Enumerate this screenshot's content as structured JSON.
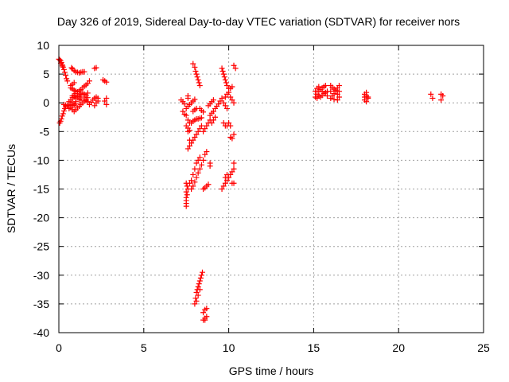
{
  "chart_data": {
    "type": "scatter",
    "title": "Day 326 of 2019, Sidereal Day-to-day VTEC variation (SDTVAR) for receiver nors",
    "xlabel": "GPS time / hours",
    "ylabel": "SDTVAR / TECUs",
    "xlim": [
      0,
      25
    ],
    "ylim": [
      -40,
      10
    ],
    "xticks": [
      0,
      5,
      10,
      15,
      20,
      25
    ],
    "xtick_labels": [
      "0",
      "5",
      "10",
      "15",
      "20",
      "25"
    ],
    "yticks": [
      10,
      5,
      0,
      -5,
      -10,
      -15,
      -20,
      -25,
      -30,
      -35,
      -40
    ],
    "ytick_labels": [
      "10",
      "5",
      "0",
      "-5",
      "-10",
      "-15",
      "-20",
      "-25",
      "-30",
      "-35",
      "-40"
    ],
    "grid": true,
    "marker": "+",
    "marker_color": "#ff0000",
    "series": [
      {
        "name": "SDTVAR",
        "points": [
          [
            0.05,
            7.5
          ],
          [
            0.1,
            7.3
          ],
          [
            0.15,
            7.0
          ],
          [
            0.2,
            6.6
          ],
          [
            0.25,
            6.2
          ],
          [
            0.3,
            5.8
          ],
          [
            0.35,
            5.3
          ],
          [
            0.4,
            4.8
          ],
          [
            0.45,
            4.2
          ],
          [
            0.5,
            3.8
          ],
          [
            0.0,
            7.6
          ],
          [
            0.12,
            6.9
          ],
          [
            0.22,
            6.4
          ],
          [
            0.05,
            -3.5
          ],
          [
            0.1,
            -3.2
          ],
          [
            0.15,
            -2.8
          ],
          [
            0.2,
            -2.3
          ],
          [
            0.25,
            -1.9
          ],
          [
            0.3,
            -1.4
          ],
          [
            0.35,
            -1.0
          ],
          [
            0.4,
            -0.7
          ],
          [
            0.3,
            -0.3
          ],
          [
            0.4,
            -0.4
          ],
          [
            0.5,
            -0.5
          ],
          [
            0.6,
            -0.4
          ],
          [
            0.7,
            -0.3
          ],
          [
            0.8,
            -0.5
          ],
          [
            0.9,
            -0.4
          ],
          [
            1.0,
            -0.2
          ],
          [
            0.6,
            0.2
          ],
          [
            0.7,
            0.5
          ],
          [
            0.8,
            0.9
          ],
          [
            0.9,
            1.3
          ],
          [
            1.0,
            1.6
          ],
          [
            1.1,
            1.9
          ],
          [
            1.2,
            2.1
          ],
          [
            1.3,
            2.3
          ],
          [
            1.4,
            2.6
          ],
          [
            1.5,
            2.9
          ],
          [
            1.6,
            3.1
          ],
          [
            1.7,
            3.4
          ],
          [
            1.8,
            3.8
          ],
          [
            0.6,
            -1.0
          ],
          [
            0.7,
            -0.8
          ],
          [
            0.8,
            -1.2
          ],
          [
            0.9,
            -1.5
          ],
          [
            1.0,
            -1.2
          ],
          [
            1.1,
            -0.9
          ],
          [
            1.2,
            -0.6
          ],
          [
            1.3,
            -0.3
          ],
          [
            1.4,
            0.0
          ],
          [
            1.5,
            0.3
          ],
          [
            1.6,
            0.6
          ],
          [
            1.7,
            0.9
          ],
          [
            1.0,
            0.8
          ],
          [
            1.1,
            1.1
          ],
          [
            1.2,
            1.3
          ],
          [
            1.3,
            1.5
          ],
          [
            1.4,
            1.7
          ],
          [
            1.5,
            1.5
          ],
          [
            1.6,
            1.3
          ],
          [
            1.7,
            1.7
          ],
          [
            0.7,
            2.6
          ],
          [
            0.8,
            2.4
          ],
          [
            0.9,
            2.2
          ],
          [
            1.0,
            2.0
          ],
          [
            0.8,
            1.2
          ],
          [
            0.9,
            1.0
          ],
          [
            1.0,
            0.8
          ],
          [
            0.8,
            0.0
          ],
          [
            1.0,
            0.2
          ],
          [
            1.2,
            0.5
          ],
          [
            0.7,
            3.0
          ],
          [
            0.8,
            3.2
          ],
          [
            0.9,
            3.5
          ],
          [
            0.75,
            6.1
          ],
          [
            0.8,
            5.9
          ],
          [
            0.9,
            5.6
          ],
          [
            1.0,
            5.4
          ],
          [
            1.1,
            5.3
          ],
          [
            1.2,
            5.2
          ],
          [
            1.3,
            5.3
          ],
          [
            1.4,
            5.4
          ],
          [
            1.5,
            5.4
          ],
          [
            1.8,
            -0.3
          ],
          [
            1.9,
            0.1
          ],
          [
            2.0,
            0.5
          ],
          [
            2.1,
            0.8
          ],
          [
            2.1,
            -0.5
          ],
          [
            2.2,
            0.0
          ],
          [
            2.3,
            0.3
          ],
          [
            2.1,
            6.0
          ],
          [
            2.2,
            6.1
          ],
          [
            2.2,
            1.0
          ],
          [
            2.3,
            0.8
          ],
          [
            2.6,
            4.0
          ],
          [
            2.7,
            3.8
          ],
          [
            2.8,
            3.6
          ],
          [
            2.7,
            0.3
          ],
          [
            2.8,
            0.8
          ],
          [
            2.8,
            -0.3
          ],
          [
            1.2,
            1.0
          ],
          [
            1.3,
            0.7
          ],
          [
            1.5,
            1.0
          ],
          [
            1.6,
            0.4
          ],
          [
            1.7,
            0.2
          ],
          [
            7.2,
            0.5
          ],
          [
            7.3,
            0.2
          ],
          [
            7.4,
            -0.2
          ],
          [
            7.3,
            -1.5
          ],
          [
            7.4,
            -2.0
          ],
          [
            7.5,
            -2.2
          ],
          [
            7.5,
            -1.0
          ],
          [
            7.6,
            -0.6
          ],
          [
            7.7,
            -0.3
          ],
          [
            7.8,
            0.0
          ],
          [
            7.9,
            0.3
          ],
          [
            8.0,
            0.6
          ],
          [
            7.6,
            1.2
          ],
          [
            7.6,
            0.8
          ],
          [
            7.5,
            -4.0
          ],
          [
            7.6,
            -4.4
          ],
          [
            7.7,
            -4.8
          ],
          [
            7.6,
            -5.0
          ],
          [
            7.7,
            -6.5
          ],
          [
            7.6,
            -8.0
          ],
          [
            7.6,
            -3.0
          ],
          [
            7.7,
            -3.5
          ],
          [
            7.5,
            -14.0
          ],
          [
            7.55,
            -14.5
          ],
          [
            7.6,
            -15.0
          ],
          [
            7.5,
            -15.5
          ],
          [
            7.55,
            -16.0
          ],
          [
            7.5,
            -16.5
          ],
          [
            7.5,
            -17.0
          ],
          [
            7.5,
            -17.5
          ],
          [
            7.5,
            -18.0
          ],
          [
            7.7,
            -14.0
          ],
          [
            7.8,
            -13.5
          ],
          [
            7.9,
            -12.5
          ],
          [
            8.0,
            -11.5
          ],
          [
            8.1,
            -10.5
          ],
          [
            8.2,
            -10.0
          ],
          [
            8.3,
            -9.5
          ],
          [
            7.8,
            -15.0
          ],
          [
            7.9,
            -14.5
          ],
          [
            8.0,
            -13.8
          ],
          [
            8.1,
            -13.0
          ],
          [
            8.2,
            -12.2
          ],
          [
            8.3,
            -11.5
          ],
          [
            8.4,
            -10.8
          ],
          [
            8.5,
            -10.0
          ],
          [
            8.6,
            -9.0
          ],
          [
            8.7,
            -8.5
          ],
          [
            7.7,
            -7.5
          ],
          [
            7.8,
            -7.0
          ],
          [
            7.9,
            -6.5
          ],
          [
            8.0,
            -6.0
          ],
          [
            8.1,
            -5.5
          ],
          [
            8.2,
            -5.0
          ],
          [
            8.3,
            -4.5
          ],
          [
            8.4,
            -4.0
          ],
          [
            7.8,
            -3.5
          ],
          [
            7.9,
            -3.2
          ],
          [
            8.0,
            -3.0
          ],
          [
            8.1,
            -2.8
          ],
          [
            8.2,
            -2.8
          ],
          [
            8.3,
            -2.7
          ],
          [
            8.4,
            -2.6
          ],
          [
            8.5,
            -5.0
          ],
          [
            8.6,
            -4.5
          ],
          [
            8.7,
            -4.0
          ],
          [
            8.8,
            -3.5
          ],
          [
            8.9,
            -3.0
          ],
          [
            7.9,
            6.8
          ],
          [
            8.0,
            6.2
          ],
          [
            8.05,
            5.5
          ],
          [
            8.1,
            5.0
          ],
          [
            8.15,
            4.5
          ],
          [
            8.2,
            4.0
          ],
          [
            8.25,
            3.5
          ],
          [
            8.3,
            3.0
          ],
          [
            7.9,
            -1.5
          ],
          [
            8.0,
            -1.2
          ],
          [
            8.1,
            -1.0
          ],
          [
            8.3,
            -1.0
          ],
          [
            8.4,
            -1.3
          ],
          [
            8.5,
            -1.6
          ],
          [
            8.5,
            -15.0
          ],
          [
            8.6,
            -14.8
          ],
          [
            8.7,
            -14.5
          ],
          [
            8.8,
            -14.2
          ],
          [
            8.9,
            -10.5
          ],
          [
            8.9,
            -11.0
          ],
          [
            8.0,
            -35.0
          ],
          [
            8.05,
            -34.0
          ],
          [
            8.1,
            -33.0
          ],
          [
            8.15,
            -32.5
          ],
          [
            8.2,
            -32.0
          ],
          [
            8.25,
            -31.5
          ],
          [
            8.3,
            -31.0
          ],
          [
            8.35,
            -30.5
          ],
          [
            8.4,
            -30.0
          ],
          [
            8.45,
            -29.5
          ],
          [
            8.1,
            -34.5
          ],
          [
            8.2,
            -33.5
          ],
          [
            8.3,
            -32.5
          ],
          [
            8.5,
            -37.8
          ],
          [
            8.6,
            -37.5
          ],
          [
            8.7,
            -37.2
          ],
          [
            8.5,
            -36.5
          ],
          [
            8.6,
            -36.0
          ],
          [
            8.7,
            -35.8
          ],
          [
            8.6,
            -37.8
          ],
          [
            8.9,
            -2.2
          ],
          [
            9.0,
            -1.8
          ],
          [
            9.1,
            -1.5
          ],
          [
            9.2,
            -1.0
          ],
          [
            9.3,
            -0.6
          ],
          [
            9.4,
            -0.2
          ],
          [
            9.5,
            0.3
          ],
          [
            9.6,
            0.8
          ],
          [
            8.8,
            -0.5
          ],
          [
            8.9,
            -0.2
          ],
          [
            9.0,
            0.2
          ],
          [
            9.1,
            0.5
          ],
          [
            9.0,
            -3.5
          ],
          [
            9.1,
            -3.0
          ],
          [
            9.2,
            -2.5
          ],
          [
            9.6,
            6.0
          ],
          [
            9.65,
            5.5
          ],
          [
            9.7,
            5.0
          ],
          [
            9.75,
            4.5
          ],
          [
            9.8,
            4.0
          ],
          [
            9.85,
            3.5
          ],
          [
            9.8,
            1.0
          ],
          [
            9.9,
            1.5
          ],
          [
            10.0,
            1.8
          ],
          [
            10.1,
            2.5
          ],
          [
            10.2,
            2.8
          ],
          [
            9.9,
            3.0
          ],
          [
            10.0,
            2.5
          ],
          [
            9.7,
            0.0
          ],
          [
            9.8,
            -0.5
          ],
          [
            9.9,
            -1.0
          ],
          [
            9.7,
            -3.5
          ],
          [
            9.8,
            -4.0
          ],
          [
            9.9,
            -4.0
          ],
          [
            10.0,
            -3.5
          ],
          [
            10.1,
            -4.0
          ],
          [
            10.1,
            -6.0
          ],
          [
            10.2,
            -6.2
          ],
          [
            10.3,
            -5.5
          ],
          [
            10.1,
            1.0
          ],
          [
            10.2,
            0.5
          ],
          [
            10.3,
            0.0
          ],
          [
            10.3,
            6.5
          ],
          [
            10.4,
            6.0
          ],
          [
            9.6,
            -15.0
          ],
          [
            9.7,
            -14.5
          ],
          [
            9.8,
            -14.0
          ],
          [
            9.9,
            -13.5
          ],
          [
            10.0,
            -13.0
          ],
          [
            10.1,
            -12.5
          ],
          [
            10.2,
            -12.0
          ],
          [
            10.3,
            -11.5
          ],
          [
            9.8,
            -13.0
          ],
          [
            9.9,
            -12.5
          ],
          [
            10.2,
            -14.0
          ],
          [
            10.3,
            -14.0
          ],
          [
            10.3,
            -10.5
          ],
          [
            15.1,
            1.0
          ],
          [
            15.2,
            1.5
          ],
          [
            15.3,
            2.0
          ],
          [
            15.4,
            2.3
          ],
          [
            15.5,
            2.6
          ],
          [
            15.6,
            2.8
          ],
          [
            15.7,
            3.0
          ],
          [
            15.1,
            2.0
          ],
          [
            15.2,
            2.5
          ],
          [
            15.3,
            1.2
          ],
          [
            15.4,
            1.0
          ],
          [
            15.5,
            1.3
          ],
          [
            15.6,
            1.6
          ],
          [
            15.7,
            1.8
          ],
          [
            15.8,
            2.0
          ],
          [
            15.2,
            0.8
          ],
          [
            15.3,
            2.8
          ],
          [
            15.5,
            2.0
          ],
          [
            15.8,
            1.2
          ],
          [
            16.0,
            3.0
          ],
          [
            16.1,
            2.7
          ],
          [
            16.2,
            2.4
          ],
          [
            16.3,
            2.0
          ],
          [
            16.4,
            1.5
          ],
          [
            16.5,
            1.0
          ],
          [
            16.0,
            0.8
          ],
          [
            16.1,
            1.2
          ],
          [
            16.2,
            1.6
          ],
          [
            16.3,
            2.2
          ],
          [
            16.4,
            2.6
          ],
          [
            16.5,
            3.0
          ],
          [
            16.0,
            2.0
          ],
          [
            16.2,
            0.6
          ],
          [
            16.4,
            0.5
          ],
          [
            16.5,
            2.0
          ],
          [
            18.0,
            1.5
          ],
          [
            18.1,
            1.2
          ],
          [
            18.2,
            1.0
          ],
          [
            18.0,
            0.5
          ],
          [
            18.1,
            0.2
          ],
          [
            18.2,
            0.8
          ],
          [
            18.0,
            1.0
          ],
          [
            18.1,
            1.8
          ],
          [
            21.9,
            1.5
          ],
          [
            22.0,
            0.8
          ],
          [
            22.5,
            1.5
          ],
          [
            22.6,
            1.2
          ],
          [
            22.5,
            0.5
          ]
        ]
      }
    ]
  }
}
